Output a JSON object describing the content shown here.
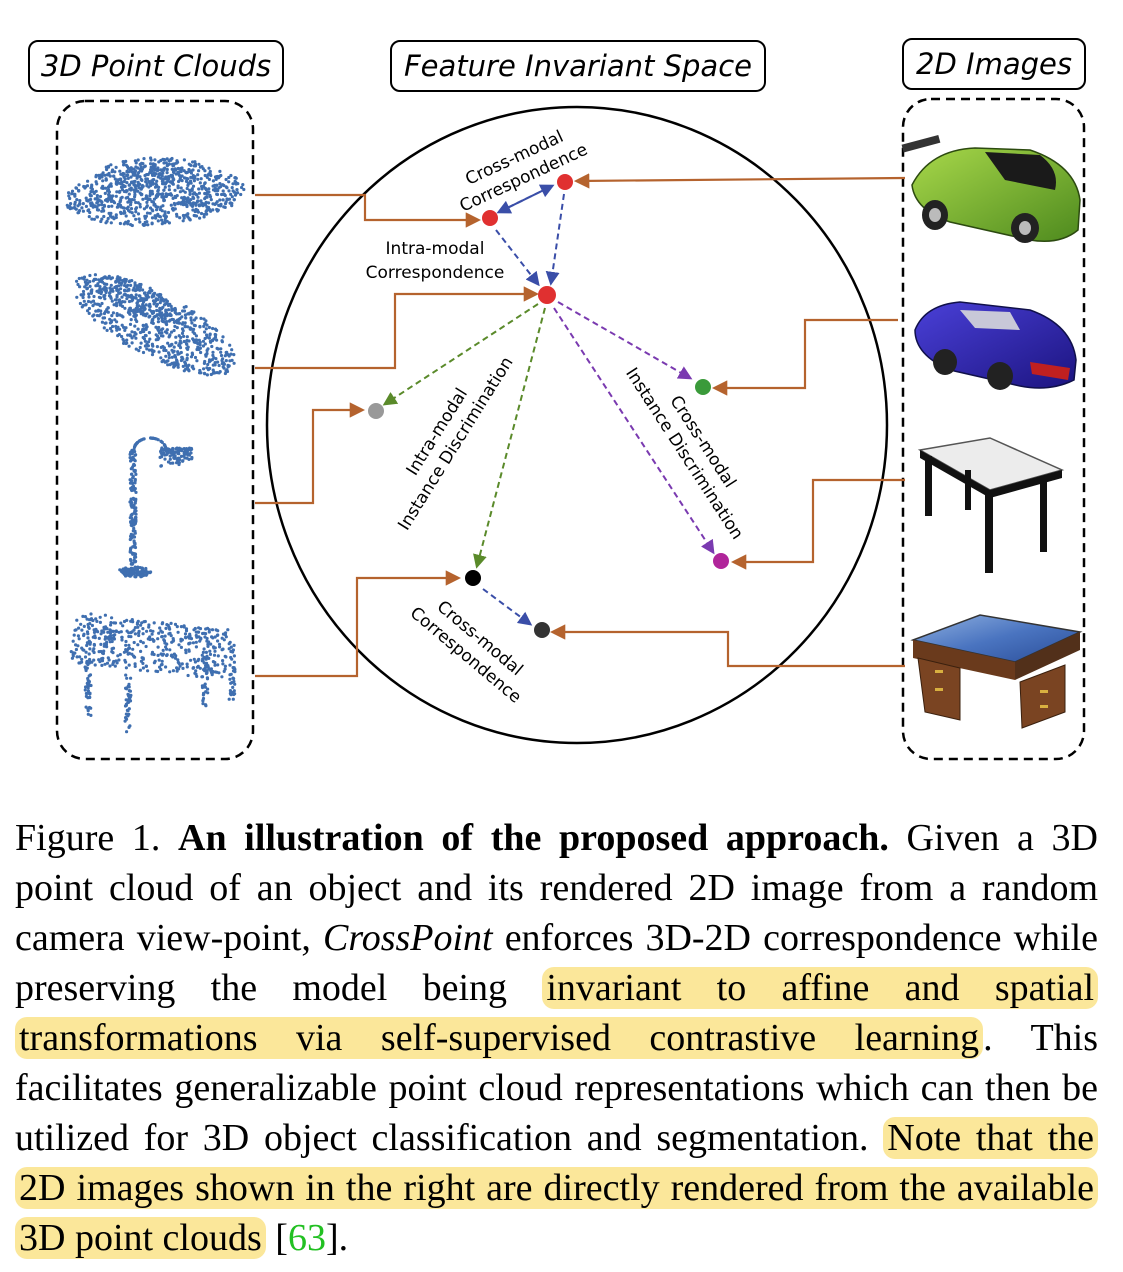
{
  "headers": {
    "left": "3D Point Clouds",
    "center": "Feature Invariant Space",
    "right": "2D Images"
  },
  "diagram_labels": {
    "cross_modal_corr_top": [
      "Cross-modal",
      "Correspondence"
    ],
    "intra_modal_corr": [
      "Intra-modal",
      "Correspondence"
    ],
    "intra_modal_disc": [
      "Intra-modal",
      "Instance Discrimination"
    ],
    "cross_modal_disc": [
      "Cross-modal",
      "Instance Discrimination"
    ],
    "cross_modal_corr_bottom": [
      "Cross-modal",
      "Correspondence"
    ]
  },
  "colors": {
    "connector": "#b5632e",
    "blue_arrow": "#3a4ea8",
    "green_arrow": "#5a8a2a",
    "purple_arrow": "#7a3ab0",
    "red_node": "#e03030",
    "green_node": "#3a9a3a",
    "purple_node": "#b0259a",
    "gray_node": "#999999",
    "black_node": "#000000",
    "point_cloud": "#3f6fb0",
    "highlight": "#fbe79a",
    "citation": "#22c022"
  },
  "objects": {
    "point_clouds": [
      "car",
      "car",
      "lamp",
      "table"
    ],
    "images": [
      "car (green)",
      "car (blue)",
      "table (white top)",
      "desk (wooden)"
    ]
  },
  "caption": {
    "label": "Figure 1.",
    "title": "An illustration of the proposed approach.",
    "part1": "Given a 3D point cloud of an object and its rendered 2D image from a random camera view-point,",
    "method": "CrossPoint",
    "part2": "enforces 3D-2D correspondence while preserving the model being",
    "highlight1": "invariant to affine and spatial transformations via self-supervised contrastive learning",
    "part3": ". This facilitates generalizable point cloud representations which can then be utilized for 3D object classification and segmentation.",
    "highlight2": "Note that the 2D images shown in the right are directly rendered from the available 3D point clouds",
    "citation_open": " [",
    "citation": "63",
    "citation_close": "]."
  }
}
